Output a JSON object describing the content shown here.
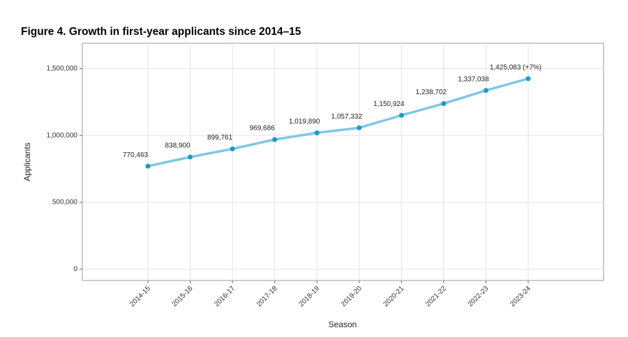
{
  "chart_data": {
    "type": "line",
    "title": "Figure 4. Growth in first-year applicants since 2014–15",
    "x_label": "Season",
    "y_label": "Applicants",
    "categories": [
      "2014-15",
      "2015-16",
      "2016-17",
      "2017-18",
      "2018-19",
      "2019-20",
      "2020-21",
      "2021-22",
      "2022-23",
      "2023-24"
    ],
    "series": [
      {
        "name": "Applicants",
        "color": "#7ec8e3",
        "marker_color": "#1b9bc6",
        "values": [
          770463,
          838900,
          899761,
          969686,
          1019890,
          1057332,
          1150924,
          1238702,
          1337038,
          1425083
        ],
        "value_labels": [
          "770,463",
          "838,900",
          "899,761",
          "969,686",
          "1,019,890",
          "1,057,332",
          "1,150,924",
          "1,238,702",
          "1,337,038",
          "1,425,083 (+7%)"
        ]
      }
    ],
    "ylim": [
      -85000,
      1690000
    ],
    "yticks": [
      {
        "value": 0,
        "label": "0"
      },
      {
        "value": 500000,
        "label": "500,000"
      },
      {
        "value": 1000000,
        "label": "1,000,000"
      },
      {
        "value": 1500000,
        "label": "1,500,000"
      }
    ],
    "grid": true
  }
}
